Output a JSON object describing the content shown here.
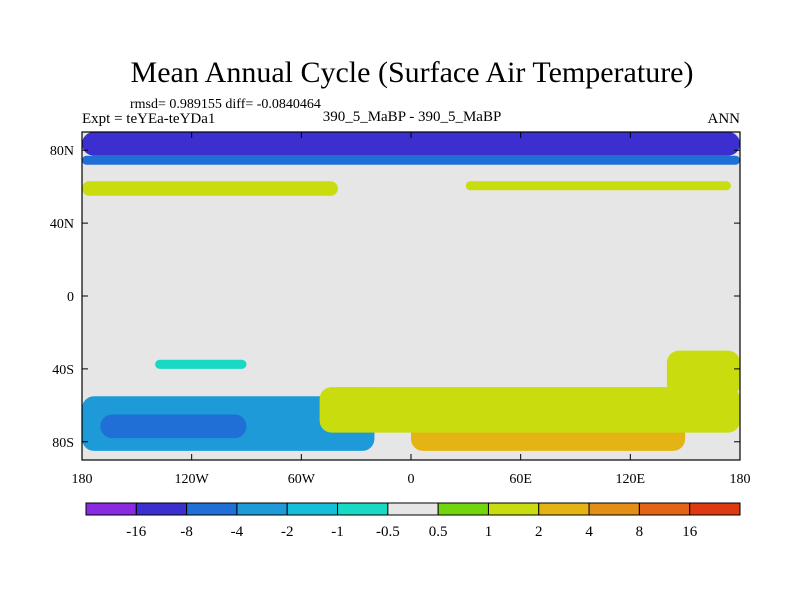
{
  "chart_data": {
    "type": "heatmap",
    "title": "Mean Annual Cycle (Surface Air Temperature)",
    "stats_text": "rmsd= 0.989155 diff= -0.0840464",
    "experiment_label": "Expt = teYEa-teYDa1",
    "comparison_label": "390_5_MaBP - 390_5_MaBP",
    "season_label": "ANN",
    "x_axis": {
      "range": [
        -180,
        180
      ],
      "ticks": [
        -180,
        -120,
        -60,
        0,
        60,
        120,
        180
      ],
      "tick_labels": [
        "180",
        "120W",
        "60W",
        "0",
        "60E",
        "120E",
        "180"
      ]
    },
    "y_axis": {
      "range": [
        -90,
        90
      ],
      "ticks": [
        80,
        40,
        0,
        -40,
        -80
      ],
      "tick_labels": [
        "80N",
        "40N",
        "0",
        "40S",
        "80S"
      ]
    },
    "colorbar": {
      "colors": [
        "#8a2be2",
        "#3b2fcf",
        "#1f6fd6",
        "#1e9ad8",
        "#16bfd9",
        "#17d9c4",
        "#e6e6e6",
        "#72d60c",
        "#c8dc0e",
        "#e3b413",
        "#e38e17",
        "#e26416",
        "#dd3a12"
      ],
      "labels": [
        "-16",
        "-8",
        "-4",
        "-2",
        "-1",
        "-0.5",
        "0.5",
        "1",
        "2",
        "4",
        "8",
        "16"
      ]
    },
    "regions": [
      {
        "name": "arctic-cold-band",
        "level": "-8",
        "lon": [
          -180,
          180
        ],
        "lat": [
          77,
          90
        ]
      },
      {
        "name": "arctic-cool-band",
        "level": "-4",
        "lon": [
          -180,
          180
        ],
        "lat": [
          72,
          77
        ]
      },
      {
        "name": "northern-green-band",
        "level": "1",
        "lon": [
          -180,
          -40
        ],
        "lat": [
          55,
          63
        ]
      },
      {
        "name": "northern-green-band-east",
        "level": "1",
        "lon": [
          30,
          175
        ],
        "lat": [
          58,
          63
        ]
      },
      {
        "name": "tropical-cool-patch",
        "level": "-0.5",
        "lon": [
          -140,
          -90
        ],
        "lat": [
          -40,
          -35
        ]
      },
      {
        "name": "southern-cool-zone",
        "level": "-2",
        "lon": [
          -180,
          -20
        ],
        "lat": [
          -85,
          -55
        ]
      },
      {
        "name": "southern-cold-core",
        "level": "-4",
        "lon": [
          -170,
          -90
        ],
        "lat": [
          -78,
          -65
        ]
      },
      {
        "name": "southern-warm-zone",
        "level": "2",
        "lon": [
          0,
          150
        ],
        "lat": [
          -85,
          -55
        ]
      },
      {
        "name": "southern-warm-margin",
        "level": "1",
        "lon": [
          -50,
          180
        ],
        "lat": [
          -75,
          -50
        ]
      },
      {
        "name": "east-pacific-warm",
        "level": "1",
        "lon": [
          140,
          180
        ],
        "lat": [
          -55,
          -30
        ]
      }
    ]
  }
}
